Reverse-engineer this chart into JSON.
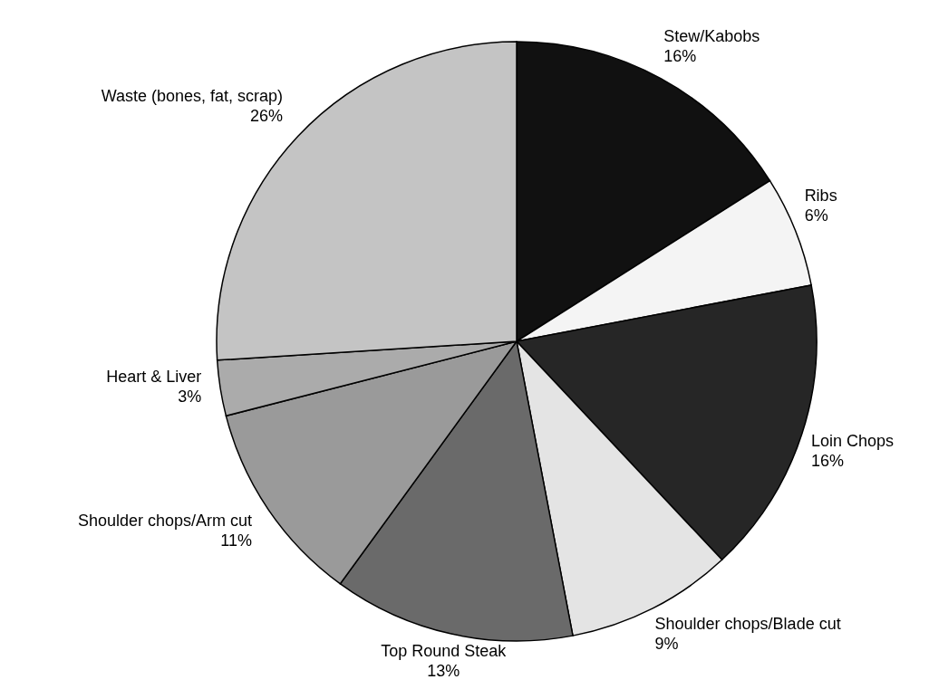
{
  "chart_data": {
    "type": "pie",
    "categories": [
      "Stew/Kabobs",
      "Ribs",
      "Loin Chops",
      "Shoulder chops/Blade cut",
      "Top Round Steak",
      "Shoulder chops/Arm cut",
      "Heart & Liver",
      "Waste (bones, fat, scrap)"
    ],
    "values": [
      16,
      6,
      16,
      9,
      13,
      11,
      3,
      26
    ],
    "colors": [
      "#111111",
      "#f4f4f4",
      "#262626",
      "#e4e4e4",
      "#6a6a6a",
      "#9a9a9a",
      "#ababab",
      "#c4c4c4"
    ],
    "value_labels": [
      "16%",
      "6%",
      "16%",
      "9%",
      "13%",
      "11%",
      "3%",
      "26%"
    ]
  }
}
